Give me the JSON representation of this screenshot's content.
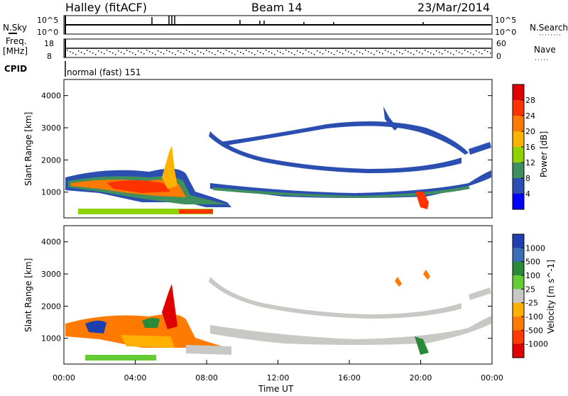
{
  "header": {
    "station": "Halley (fitACF)",
    "beam": "Beam 14",
    "date": "23/Mar/2014"
  },
  "strips": {
    "nsky_label": "N.Sky",
    "nsearch_label": "N.Search",
    "nsky_ticks": [
      "10^5",
      "10^0"
    ],
    "nsearch_ticks": [
      "10^5",
      "10^0"
    ],
    "freq_label": "Freq.",
    "freq_unit": "[MHz]",
    "freq_ticks": [
      "18",
      "8"
    ],
    "nave_label": "Nave",
    "nave_ticks": [
      "60",
      "0"
    ],
    "cpid_label": "CPID",
    "cpid_value": "normal (fast) 151"
  },
  "chart_data": [
    {
      "type": "heatmap",
      "panel": "power",
      "ylabel": "Slant Range [km]",
      "xlabel": "",
      "y_ticks": [
        1000,
        2000,
        3000,
        4000
      ],
      "ylim": [
        200,
        4500
      ],
      "x_ticks": [
        "00:00",
        "04:00",
        "08:00",
        "12:00",
        "16:00",
        "20:00",
        "00:00"
      ],
      "xlim_hours": [
        0,
        24
      ],
      "colorbar": {
        "label": "Power [dB]",
        "ticks": [
          "28",
          "24",
          "20",
          "16",
          "12",
          "8",
          "4"
        ],
        "colors": [
          "#e00000",
          "#ff3300",
          "#ff7a00",
          "#ffb300",
          "#8fd400",
          "#3f8f5f",
          "#2a4fb0",
          "#0000ff"
        ]
      }
    },
    {
      "type": "heatmap",
      "panel": "velocity",
      "ylabel": "Slant Range [km]",
      "xlabel": "Time UT",
      "y_ticks": [
        1000,
        2000,
        3000,
        4000
      ],
      "ylim": [
        200,
        4500
      ],
      "x_ticks": [
        "00:00",
        "04:00",
        "08:00",
        "12:00",
        "16:00",
        "20:00",
        "00:00"
      ],
      "xlim_hours": [
        0,
        24
      ],
      "colorbar": {
        "label": "Velocity [m s^-1]",
        "ticks": [
          "1000",
          "500",
          "100",
          "25",
          "-25",
          "-100",
          "-500",
          "-1000"
        ],
        "colors": [
          "#1f3fb0",
          "#3a6fb8",
          "#2a8a3a",
          "#66cc33",
          "#c8c8c4",
          "#ffb000",
          "#ff7a00",
          "#ff3a00",
          "#e00000"
        ]
      }
    }
  ]
}
